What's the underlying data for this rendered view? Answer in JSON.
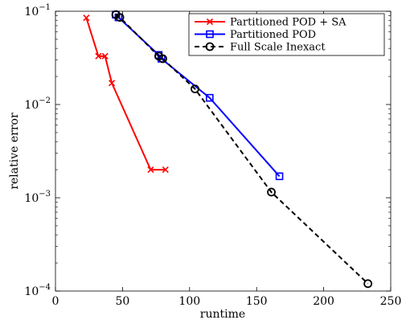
{
  "chart_data": {
    "type": "line",
    "xlabel": "runtime",
    "ylabel": "relative error",
    "xlim": [
      0,
      250
    ],
    "ylim": [
      0.0001,
      0.1
    ],
    "yscale": "log",
    "x_ticks": [
      "0",
      "50",
      "100",
      "150",
      "200",
      "250"
    ],
    "y_ticks": [
      {
        "base": "10",
        "exp": "−1"
      },
      {
        "base": "10",
        "exp": "−2"
      },
      {
        "base": "10",
        "exp": "−3"
      },
      {
        "base": "10",
        "exp": "−4"
      }
    ],
    "grid": false,
    "legend_position": "top-right",
    "series": [
      {
        "name": "Partitioned POD + SA",
        "color": "#ff0000",
        "marker": "x",
        "line_style": "solid",
        "x": [
          23,
          32,
          37,
          42,
          71,
          82
        ],
        "y": [
          0.085,
          0.033,
          0.033,
          0.017,
          0.002,
          0.002
        ]
      },
      {
        "name": "Partitioned POD",
        "color": "#0000ff",
        "marker": "square",
        "line_style": "solid",
        "x": [
          45,
          47,
          77,
          79,
          115,
          167
        ],
        "y": [
          0.092,
          0.086,
          0.034,
          0.031,
          0.0118,
          0.0017
        ]
      },
      {
        "name": "Full Scale Inexact",
        "color": "#000000",
        "marker": "circle",
        "line_style": "dashed",
        "x": [
          45,
          48,
          77,
          80,
          104,
          161,
          233
        ],
        "y": [
          0.092,
          0.086,
          0.033,
          0.031,
          0.0147,
          0.00115,
          0.00012
        ]
      }
    ]
  }
}
